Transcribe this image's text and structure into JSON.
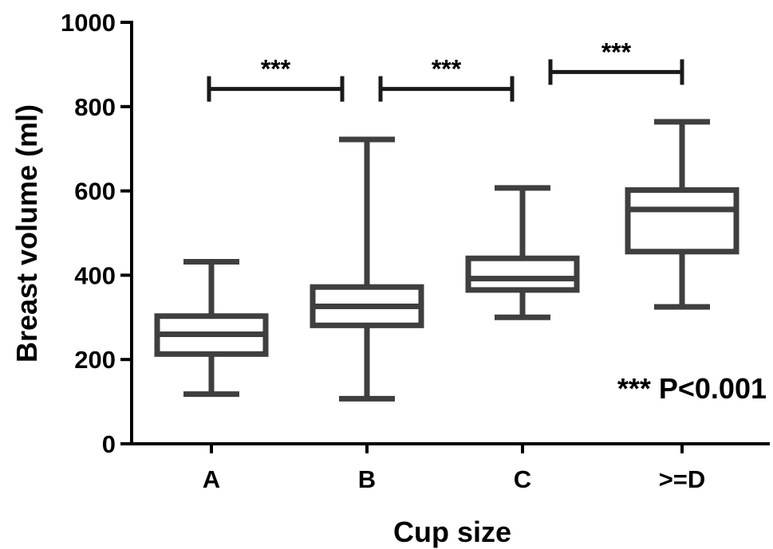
{
  "chart_data": {
    "type": "boxplot",
    "xlabel": "Cup size",
    "ylabel": "Breast volume (ml)",
    "ylim": [
      0,
      1000
    ],
    "yticks": [
      0,
      200,
      400,
      600,
      800,
      1000
    ],
    "categories": [
      "A",
      "B",
      "C",
      ">=D"
    ],
    "boxes": [
      {
        "category": "A",
        "min": 118,
        "q1": 213,
        "median": 260,
        "q3": 303,
        "max": 432
      },
      {
        "category": "B",
        "min": 107,
        "q1": 281,
        "median": 326,
        "q3": 372,
        "max": 722
      },
      {
        "category": "C",
        "min": 300,
        "q1": 365,
        "median": 392,
        "q3": 440,
        "max": 607
      },
      {
        "category": ">=D",
        "min": 325,
        "q1": 456,
        "median": 556,
        "q3": 602,
        "max": 764
      }
    ],
    "significance": [
      {
        "from": "A",
        "to": "B",
        "label": "***",
        "y": 842
      },
      {
        "from": "B",
        "to": "C",
        "label": "***",
        "y": 842
      },
      {
        "from": "C",
        "to": ">=D",
        "label": "***",
        "y": 882
      }
    ],
    "annotation": "*** P<0.001"
  }
}
